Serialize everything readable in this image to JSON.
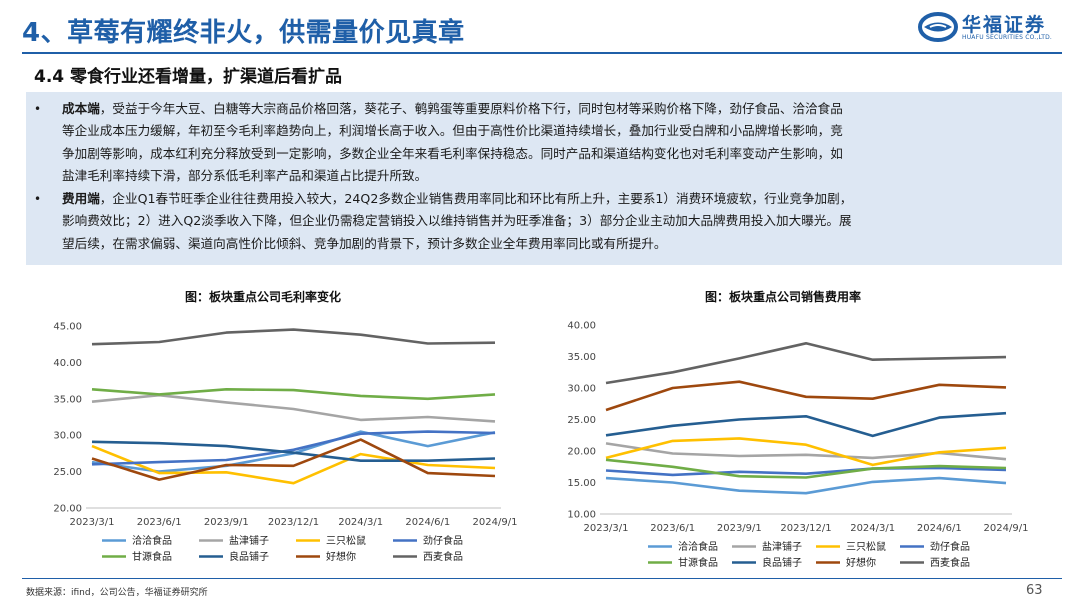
{
  "header": {
    "title": "4、草莓有耀终非火，供需量价见真章",
    "logo_cn": "华福证券",
    "logo_en": "HUAFU SECURITIES CO.,LTD.",
    "brand_color": "#1f5fa8"
  },
  "section_title": "4.4 零食行业还看增量，扩渠道后看扩品",
  "bullets": [
    {
      "lead": "成本端",
      "lines": [
        "，受益于今年大豆、白糖等大宗商品价格回落，葵花子、鹌鹑蛋等重要原料价格下行，同时包材等采购价格下降，劲仔食品、洽洽食品",
        "等企业成本压力缓解，年初至今毛利率趋势向上，利润增长高于收入。但由于高性价比渠道持续增长，叠加行业受白牌和小品牌增长影响，竞",
        "争加剧等影响，成本红利充分释放受到一定影响，多数企业全年来看毛利率保持稳态。同时产品和渠道结构变化也对毛利率变动产生影响，如",
        "盐津毛利率持续下滑，部分系低毛利率产品和渠道占比提升所致。"
      ]
    },
    {
      "lead": "费用端",
      "lines": [
        "，企业Q1春节旺季企业往往费用投入较大，24Q2多数企业销售费用率同比和环比有所上升，主要系1）消费环境疲软，行业竞争加剧，",
        "影响费效比；2）进入Q2淡季收入下降，但企业仍需稳定营销投入以维持销售并为旺季准备；3）部分企业主动加大品牌费用投入加大曝光。展",
        "望后续，在需求偏弱、渠道向高性价比倾斜、竞争加剧的背景下，预计多数企业全年费用率同比或有所提升。"
      ]
    }
  ],
  "footer": {
    "source": "数据来源：ifind，公司公告，华福证券研究所",
    "page": "63"
  },
  "chart_data": [
    {
      "type": "line",
      "title": "图：板块重点公司毛利率变化",
      "categories": [
        "2023/3/1",
        "2023/6/1",
        "2023/9/1",
        "2023/12/1",
        "2024/3/1",
        "2024/6/1",
        "2024/9/1"
      ],
      "ylim": [
        20,
        45
      ],
      "yticks": [
        "20.00",
        "25.00",
        "30.00",
        "35.00",
        "40.00",
        "45.00"
      ],
      "series": [
        {
          "name": "洽洽食品",
          "color": "#5b9bd5",
          "values": [
            26.3,
            25.0,
            25.8,
            27.5,
            30.5,
            28.5,
            30.4
          ]
        },
        {
          "name": "盐津铺子",
          "color": "#a5a5a5",
          "values": [
            34.6,
            35.5,
            34.5,
            33.6,
            32.1,
            32.5,
            31.9
          ]
        },
        {
          "name": "三只松鼠",
          "color": "#ffc000",
          "values": [
            28.5,
            24.8,
            24.9,
            23.4,
            27.4,
            25.9,
            25.5
          ]
        },
        {
          "name": "劲仔食品",
          "color": "#4472c4",
          "values": [
            26.0,
            26.3,
            26.6,
            28.0,
            30.2,
            30.5,
            30.3
          ]
        },
        {
          "name": "甘源食品",
          "color": "#70ad47",
          "values": [
            36.3,
            35.6,
            36.3,
            36.2,
            35.4,
            35.0,
            35.6
          ]
        },
        {
          "name": "良品铺子",
          "color": "#255e91",
          "values": [
            29.1,
            28.9,
            28.5,
            27.6,
            26.5,
            26.5,
            26.8
          ]
        },
        {
          "name": "好想你",
          "color": "#9e480e",
          "values": [
            26.8,
            23.9,
            25.9,
            25.8,
            29.4,
            24.8,
            24.4
          ]
        },
        {
          "name": "西麦食品",
          "color": "#636363",
          "values": [
            42.5,
            42.8,
            44.1,
            44.5,
            43.8,
            42.6,
            42.7
          ]
        }
      ]
    },
    {
      "type": "line",
      "title": "图：板块重点公司销售费用率",
      "categories": [
        "2023/3/1",
        "2023/6/1",
        "2023/9/1",
        "2023/12/1",
        "2024/3/1",
        "2024/6/1",
        "2024/9/1"
      ],
      "ylim": [
        10,
        40
      ],
      "yticks": [
        "10.00",
        "15.00",
        "20.00",
        "25.00",
        "30.00",
        "35.00",
        "40.00"
      ],
      "series": [
        {
          "name": "洽洽食品",
          "color": "#5b9bd5",
          "values": [
            15.7,
            15.0,
            13.7,
            13.3,
            15.1,
            15.7,
            14.9
          ]
        },
        {
          "name": "盐津铺子",
          "color": "#a5a5a5",
          "values": [
            21.2,
            19.6,
            19.2,
            19.4,
            18.9,
            19.7,
            18.7
          ]
        },
        {
          "name": "三只松鼠",
          "color": "#ffc000",
          "values": [
            18.9,
            21.6,
            22.0,
            21.0,
            17.8,
            19.8,
            20.5
          ]
        },
        {
          "name": "劲仔食品",
          "color": "#4472c4",
          "values": [
            16.9,
            16.2,
            16.7,
            16.4,
            17.2,
            17.3,
            17.0
          ]
        },
        {
          "name": "甘源食品",
          "color": "#70ad47",
          "values": [
            18.6,
            17.5,
            16.0,
            15.8,
            17.2,
            17.6,
            17.3
          ]
        },
        {
          "name": "良品铺子",
          "color": "#255e91",
          "values": [
            22.5,
            24.0,
            25.0,
            25.5,
            22.4,
            25.3,
            26.0
          ]
        },
        {
          "name": "好想你",
          "color": "#9e480e",
          "values": [
            26.5,
            30.0,
            31.0,
            28.6,
            28.3,
            30.5,
            30.1
          ]
        },
        {
          "name": "西麦食品",
          "color": "#636363",
          "values": [
            30.8,
            32.5,
            34.7,
            37.1,
            34.5,
            34.7,
            34.9
          ]
        }
      ]
    }
  ]
}
